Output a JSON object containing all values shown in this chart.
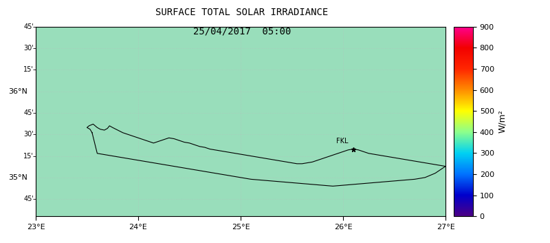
{
  "title_line1": "SURFACE TOTAL SOLAR IRRADIANCE",
  "title_line2": "25/04/2017  05:00",
  "lon_min": 23.0,
  "lon_max": 27.0,
  "lat_min": 34.55,
  "lat_max": 36.2,
  "x_ticks": [
    23,
    24,
    25,
    26,
    27
  ],
  "x_tick_labels": [
    "23°E",
    "24°E",
    "25°E",
    "26°E",
    "27°E"
  ],
  "y_ticks": [
    34.75,
    35.0,
    35.25,
    35.5,
    35.75,
    36.0,
    36.25,
    36.5,
    36.75
  ],
  "y_tick_labels_show": [
    35.0,
    36.0
  ],
  "colorbar_min": 0,
  "colorbar_max": 900,
  "colorbar_ticks": [
    0,
    100,
    200,
    300,
    400,
    500,
    600,
    700,
    800,
    900
  ],
  "colorbar_label": "W/m²",
  "bg_color": "#99debb",
  "fkl_lon": 26.1,
  "fkl_lat": 35.33,
  "fkl_label": "FKL",
  "grid_color": "#aaccbb",
  "title_fontsize": 10,
  "tick_fontsize": 8,
  "colorbar_fontsize": 8
}
